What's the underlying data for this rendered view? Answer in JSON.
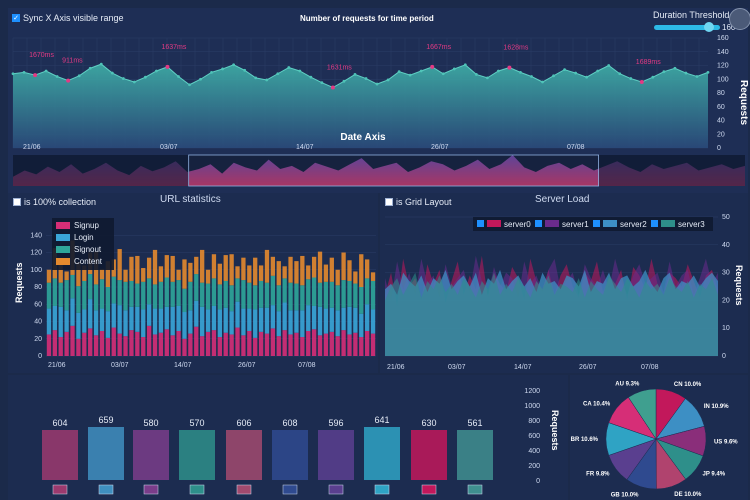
{
  "top": {
    "sync_label": "Sync X Axis visible range",
    "title": "Number of requests for time period",
    "duration_label": "Duration Threshold",
    "threshold_value": 160,
    "xlabel": "Date Axis",
    "ylabel": "Requests"
  },
  "url_stats": {
    "checkbox_label": "is 100% collection",
    "title": "URL statistics"
  },
  "server_load": {
    "checkbox_label": "is Grid Layout",
    "title": "Server Load"
  },
  "bottom": {
    "ylabel": "Requests"
  },
  "colors": {
    "bg": "#1b2a4a",
    "panel": "#1d2d52",
    "signup": "#d62e77",
    "login": "#3aa6d8",
    "signout": "#2fa69a",
    "content": "#e58a2e",
    "server0": "#c2185b",
    "server1": "#6a2b8c",
    "server2": "#3d8fc4",
    "server3": "#2e8f8a",
    "area_top": "#3fb0a8",
    "area_bottom": "#2a4a7a",
    "annotation": "#e23a84"
  },
  "chart_data": [
    {
      "type": "area",
      "title": "Number of requests for time period",
      "xlabel": "Date Axis",
      "ylabel": "Requests",
      "ylim": [
        0,
        160
      ],
      "x_ticks": [
        "21/06",
        "03/07",
        "14/07",
        "26/07",
        "07/08"
      ],
      "y_ticks": [
        0,
        20,
        40,
        60,
        80,
        100,
        120,
        140,
        160
      ],
      "values": [
        108,
        110,
        106,
        112,
        104,
        98,
        105,
        116,
        122,
        109,
        101,
        96,
        103,
        112,
        118,
        104,
        92,
        100,
        110,
        115,
        121,
        113,
        102,
        99,
        108,
        117,
        112,
        103,
        95,
        88,
        97,
        107,
        101,
        93,
        99,
        111,
        106,
        112,
        118,
        108,
        115,
        121,
        107,
        102,
        112,
        117,
        110,
        104,
        96,
        105,
        114,
        109,
        103,
        112,
        120,
        108,
        101,
        96,
        103,
        111,
        116,
        109,
        104,
        110
      ],
      "annotations": [
        {
          "label": "1670ms",
          "index": 2
        },
        {
          "label": "911ms",
          "index": 5
        },
        {
          "label": "1637ms",
          "index": 14
        },
        {
          "label": "1631ms",
          "index": 29
        },
        {
          "label": "1667ms",
          "index": 38
        },
        {
          "label": "1628ms",
          "index": 45
        },
        {
          "label": "1689ms",
          "index": 57
        }
      ],
      "grid": true
    },
    {
      "type": "area",
      "title": "",
      "values": [
        12,
        20,
        15,
        25,
        18,
        28,
        16,
        22,
        30,
        20,
        14,
        26,
        19,
        24,
        32,
        18,
        22,
        28,
        16,
        30,
        24,
        20,
        34,
        22,
        26,
        18,
        30,
        25,
        20,
        28,
        36,
        22,
        26,
        30,
        18,
        24,
        32,
        28,
        20,
        26,
        34,
        22,
        28,
        40,
        24,
        18,
        26,
        30,
        22,
        28,
        20,
        26,
        32,
        24,
        18,
        28,
        22,
        26,
        30,
        20,
        24,
        28,
        22,
        26
      ],
      "selected_range": [
        0.24,
        0.8
      ]
    },
    {
      "type": "bar",
      "title": "URL statistics",
      "ylabel": "Requests",
      "ylim": [
        0,
        160
      ],
      "x_ticks": [
        "21/06",
        "03/07",
        "14/07",
        "26/07",
        "07/08"
      ],
      "y_ticks": [
        0,
        20,
        40,
        60,
        80,
        100,
        120,
        140
      ],
      "series": [
        {
          "name": "Signup",
          "values": [
            25,
            30,
            22,
            28,
            35,
            20,
            27,
            32,
            24,
            29,
            21,
            33,
            26,
            23,
            30,
            28,
            22,
            35,
            25,
            27,
            31,
            24,
            29,
            20,
            26,
            34,
            23,
            28,
            30,
            22,
            27,
            25,
            33,
            24,
            29,
            21,
            28,
            26,
            32,
            23,
            30,
            25,
            27,
            22,
            29,
            31,
            24,
            26,
            28,
            23,
            30,
            25,
            27,
            22,
            29,
            26
          ]
        },
        {
          "name": "Login",
          "values": [
            30,
            28,
            35,
            25,
            32,
            30,
            27,
            34,
            29,
            26,
            31,
            28,
            33,
            30,
            27,
            29,
            32,
            25,
            30,
            28,
            26,
            33,
            29,
            31,
            27,
            30,
            34,
            26,
            28,
            32,
            29,
            27,
            30,
            31,
            26,
            33,
            28,
            30,
            27,
            29,
            32,
            28,
            26,
            31,
            30,
            27,
            33,
            29,
            28,
            30,
            26,
            32,
            29,
            27,
            31,
            28
          ]
        },
        {
          "name": "Signout",
          "values": [
            30,
            32,
            28,
            35,
            27,
            31,
            33,
            29,
            30,
            34,
            28,
            31,
            29,
            33,
            30,
            27,
            32,
            30,
            28,
            31,
            34,
            29,
            30,
            27,
            33,
            31,
            28,
            30,
            32,
            29,
            31,
            30,
            27,
            33,
            30,
            28,
            31,
            29,
            34,
            30,
            28,
            32,
            31,
            29,
            30,
            33,
            28,
            31,
            30,
            29,
            32,
            30,
            28,
            31,
            30,
            33
          ]
        },
        {
          "name": "Content",
          "values": [
            15,
            35,
            22,
            10,
            40,
            28,
            18,
            25,
            38,
            12,
            30,
            20,
            36,
            14,
            28,
            32,
            16,
            24,
            40,
            18,
            26,
            30,
            12,
            34,
            22,
            20,
            38,
            16,
            28,
            24,
            30,
            36,
            14,
            26,
            20,
            32,
            18,
            38,
            22,
            28,
            14,
            30,
            26,
            34,
            16,
            24,
            36,
            20,
            28,
            18,
            32,
            24,
            14,
            38,
            22,
            10
          ]
        }
      ]
    },
    {
      "type": "area",
      "title": "Server Load",
      "ylim": [
        0,
        50
      ],
      "x_ticks": [
        "21/06",
        "03/07",
        "14/07",
        "26/07",
        "07/08"
      ],
      "y_ticks": [
        0,
        10,
        20,
        30,
        40,
        50
      ],
      "series": [
        {
          "name": "server0",
          "values": [
            22,
            30,
            18,
            35,
            25,
            28,
            20,
            33,
            26,
            31,
            19,
            27,
            34,
            22,
            29,
            24,
            36,
            21,
            30,
            26,
            23,
            32,
            28,
            20,
            35,
            27,
            24,
            31,
            22,
            29,
            33,
            25,
            21,
            30,
            27,
            34,
            23,
            28,
            26,
            31,
            20,
            32,
            29,
            24,
            35,
            26,
            22,
            30,
            28,
            25,
            33,
            27,
            21,
            29,
            31,
            24
          ]
        },
        {
          "name": "server1",
          "values": [
            28,
            20,
            34,
            24,
            30,
            22,
            35,
            26,
            29,
            21,
            33,
            25,
            28,
            31,
            23,
            36,
            27,
            22,
            32,
            25,
            30,
            28,
            21,
            34,
            26,
            29,
            23,
            31,
            35,
            24,
            27,
            30,
            22,
            33,
            28,
            25,
            31,
            24,
            35,
            27,
            22,
            29,
            33,
            26,
            28,
            30,
            23,
            34,
            25,
            29,
            31,
            22,
            28,
            35,
            26,
            30
          ]
        },
        {
          "name": "server2",
          "values": [
            24,
            26,
            22,
            30,
            27,
            25,
            29,
            23,
            28,
            26,
            31,
            24,
            27,
            29,
            25,
            30,
            22,
            28,
            26,
            31,
            24,
            27,
            29,
            25,
            28,
            23,
            30,
            26,
            27,
            24,
            29,
            28,
            25,
            31,
            23,
            27,
            26,
            30,
            24,
            28,
            29,
            25,
            27,
            31,
            26,
            23,
            28,
            30,
            24,
            27,
            26,
            29,
            25,
            28,
            30,
            27
          ]
        },
        {
          "name": "server3",
          "values": [
            20,
            25,
            28,
            22,
            26,
            30,
            21,
            27,
            24,
            29,
            23,
            26,
            22,
            28,
            25,
            21,
            27,
            24,
            30,
            22,
            26,
            23,
            28,
            25,
            21,
            27,
            24,
            29,
            22,
            26,
            25,
            23,
            28,
            21,
            27,
            24,
            22,
            29,
            26,
            23,
            28,
            25,
            21,
            27,
            24,
            26,
            22,
            28,
            25,
            23,
            27,
            21,
            26,
            24,
            28,
            22
          ]
        }
      ]
    },
    {
      "type": "bar",
      "ylabel": "Requests",
      "ylim": [
        0,
        1200
      ],
      "y_ticks": [
        0,
        200,
        400,
        600,
        800,
        1000,
        1200
      ],
      "categories": [
        "CN",
        "IN",
        "US",
        "JP",
        "DE",
        "GB",
        "FR",
        "BR",
        "CA",
        "AU"
      ],
      "values": [
        604,
        659,
        580,
        570,
        606,
        608,
        596,
        641,
        630,
        561
      ],
      "bar_colors": [
        "#9c3a6e",
        "#3f8fbf",
        "#7a3d8a",
        "#2e8f8a",
        "#a24a6e",
        "#2f4a8f",
        "#5a3f8f",
        "#2fa3c4",
        "#c2185b",
        "#3f8f8f"
      ]
    },
    {
      "type": "pie",
      "slices": [
        {
          "label": "CN 10.0%",
          "value": 10.0,
          "color": "#c2185b"
        },
        {
          "label": "IN 10.9%",
          "value": 10.9,
          "color": "#3d8fc4"
        },
        {
          "label": "US 9.6%",
          "value": 9.6,
          "color": "#8a2e7a"
        },
        {
          "label": "JP 9.4%",
          "value": 9.4,
          "color": "#2e8f8a"
        },
        {
          "label": "DE 10.0%",
          "value": 10.0,
          "color": "#b0436e"
        },
        {
          "label": "GB 10.0%",
          "value": 10.0,
          "color": "#2f4a8f"
        },
        {
          "label": "FR 9.8%",
          "value": 9.8,
          "color": "#5a3f8f"
        },
        {
          "label": "BR 10.6%",
          "value": 10.6,
          "color": "#2fa3c4"
        },
        {
          "label": "CA 10.4%",
          "value": 10.4,
          "color": "#d62e77"
        },
        {
          "label": "AU 9.3%",
          "value": 9.3,
          "color": "#3f9f8f"
        }
      ]
    }
  ]
}
